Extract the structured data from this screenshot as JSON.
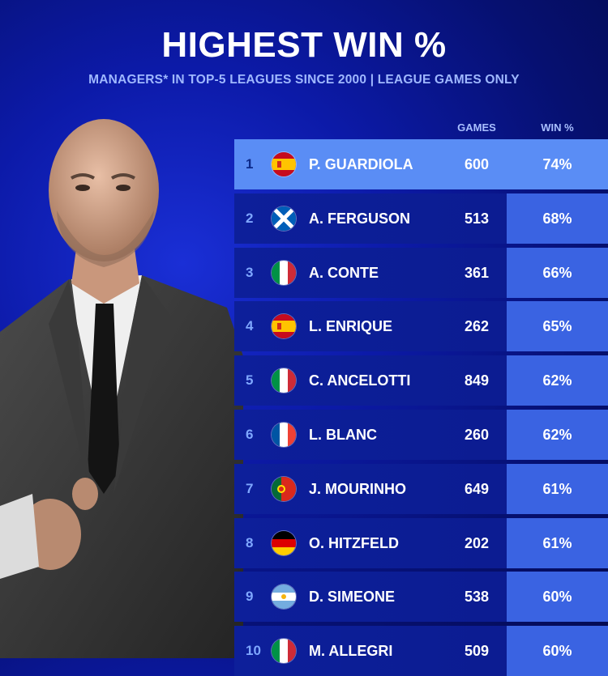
{
  "header": {
    "title": "HIGHEST WIN %",
    "subtitle": "MANAGERS* IN TOP-5 LEAGUES SINCE 2000 | LEAGUE GAMES ONLY"
  },
  "columns": {
    "games": "GAMES",
    "win": "WIN %"
  },
  "colors": {
    "background": "#0c1aa8",
    "highlight_row": "#5a8df5",
    "win_cell": "#3a63e2",
    "subtitle": "#9fb8ff"
  },
  "chart_data": {
    "type": "table",
    "title": "HIGHEST WIN %",
    "subtitle": "MANAGERS* IN TOP-5 LEAGUES SINCE 2000 | LEAGUE GAMES ONLY",
    "columns": [
      "GAMES",
      "WIN %"
    ],
    "rows": [
      {
        "rank": "1",
        "flag": "spain-flag-icon",
        "name": "P. GUARDIOLA",
        "games": "600",
        "win": "74%"
      },
      {
        "rank": "2",
        "flag": "scotland-flag-icon",
        "name": "A. FERGUSON",
        "games": "513",
        "win": "68%"
      },
      {
        "rank": "3",
        "flag": "italy-flag-icon",
        "name": "A. CONTE",
        "games": "361",
        "win": "66%"
      },
      {
        "rank": "4",
        "flag": "spain-flag-icon",
        "name": "L. ENRIQUE",
        "games": "262",
        "win": "65%"
      },
      {
        "rank": "5",
        "flag": "italy-flag-icon",
        "name": "C. ANCELOTTI",
        "games": "849",
        "win": "62%"
      },
      {
        "rank": "6",
        "flag": "france-flag-icon",
        "name": "L. BLANC",
        "games": "260",
        "win": "62%"
      },
      {
        "rank": "7",
        "flag": "portugal-flag-icon",
        "name": "J. MOURINHO",
        "games": "649",
        "win": "61%"
      },
      {
        "rank": "8",
        "flag": "germany-flag-icon",
        "name": "O. HITZFELD",
        "games": "202",
        "win": "61%"
      },
      {
        "rank": "9",
        "flag": "argentina-flag-icon",
        "name": "D. SIMEONE",
        "games": "538",
        "win": "60%"
      },
      {
        "rank": "10",
        "flag": "italy-flag-icon",
        "name": "M. ALLEGRI",
        "games": "509",
        "win": "60%"
      }
    ]
  }
}
